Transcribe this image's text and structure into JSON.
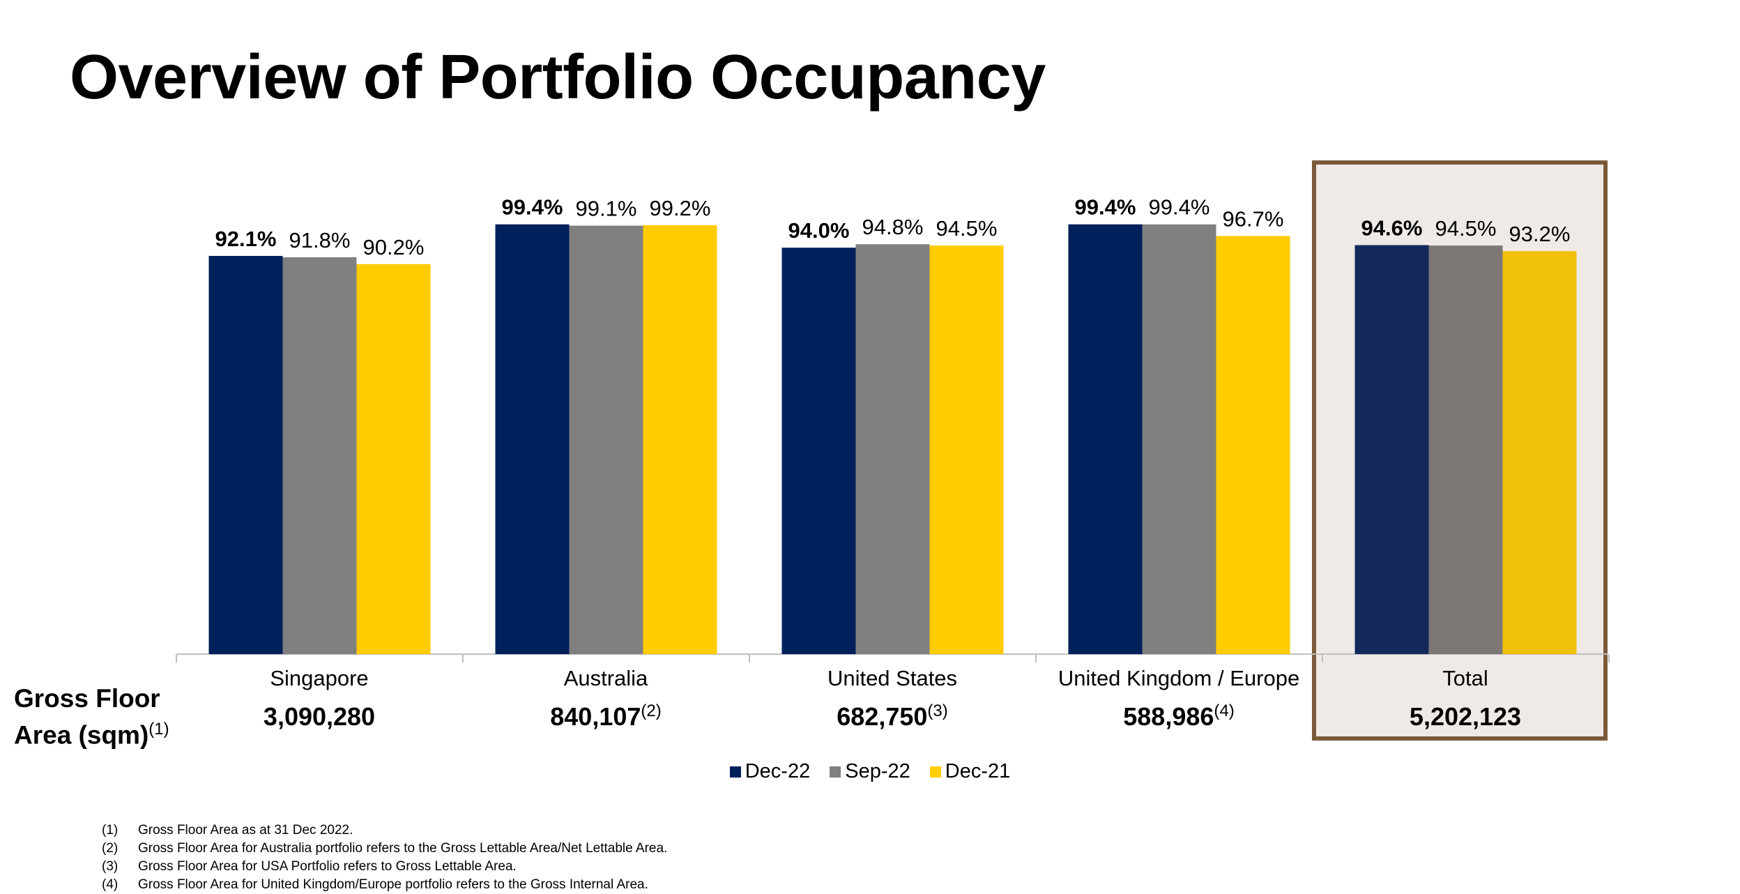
{
  "page": {
    "title": "Overview of Portfolio Occupancy"
  },
  "gfa": {
    "label_line1": "Gross Floor",
    "label_line2": "Area (sqm)",
    "label_sup": "(1)",
    "items": [
      {
        "value": "3,090,280",
        "sup": ""
      },
      {
        "value": "840,107",
        "sup": "(2)"
      },
      {
        "value": "682,750",
        "sup": "(3)"
      },
      {
        "value": "588,986",
        "sup": "(4)"
      },
      {
        "value": "5,202,123",
        "sup": ""
      }
    ]
  },
  "chart_data": {
    "type": "bar",
    "title": "",
    "xlabel": "",
    "ylabel": "",
    "categories": [
      "Singapore",
      "Australia",
      "United States",
      "United Kingdom / Europe",
      "Total"
    ],
    "series": [
      {
        "name": "Dec-22",
        "color": "#00205b",
        "values": [
          92.1,
          99.4,
          94.0,
          99.4,
          94.6
        ],
        "labels": [
          "92.1%",
          "99.4%",
          "94.0%",
          "99.4%",
          "94.6%"
        ]
      },
      {
        "name": "Sep-22",
        "color": "#808080",
        "values": [
          91.8,
          99.1,
          94.8,
          99.4,
          94.5
        ],
        "labels": [
          "91.8%",
          "99.1%",
          "94.8%",
          "99.4%",
          "94.5%"
        ]
      },
      {
        "name": "Dec-21",
        "color": "#ffcc00",
        "values": [
          90.2,
          99.2,
          94.5,
          96.7,
          93.2
        ],
        "labels": [
          "90.2%",
          "99.2%",
          "94.5%",
          "96.7%",
          "93.2%"
        ]
      }
    ],
    "highlight_category": "Total",
    "highlight_colors": [
      "#14295b",
      "#7d7876",
      "#f0c00a"
    ],
    "ylim": [
      0,
      100
    ],
    "grid": false,
    "legend_position": "bottom"
  },
  "legend": {
    "items": [
      {
        "label": "Dec-22",
        "color": "#00205b"
      },
      {
        "label": "Sep-22",
        "color": "#808080"
      },
      {
        "label": "Dec-21",
        "color": "#ffcc00"
      }
    ]
  },
  "footnotes": [
    {
      "num": "(1)",
      "text": "Gross Floor Area as at 31 Dec 2022."
    },
    {
      "num": "(2)",
      "text": "Gross Floor Area for Australia portfolio refers to the Gross Lettable Area/Net Lettable Area."
    },
    {
      "num": "(3)",
      "text": "Gross Floor Area for USA Portfolio refers to Gross Lettable Area."
    },
    {
      "num": "(4)",
      "text": "Gross Floor Area for United Kingdom/Europe portfolio refers to the Gross Internal Area."
    }
  ]
}
